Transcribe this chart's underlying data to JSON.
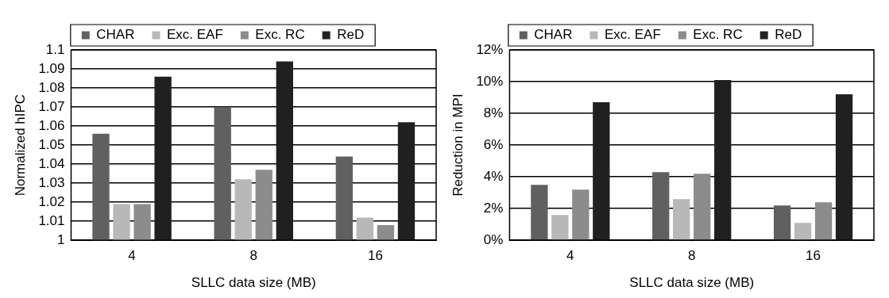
{
  "chart_data": [
    {
      "type": "bar",
      "categories": [
        "4",
        "8",
        "16"
      ],
      "xlabel": "SLLC data size (MB)",
      "ylabel": "Normalized hIPC",
      "ylim": [
        1,
        1.1
      ],
      "yticks": [
        1,
        1.01,
        1.02,
        1.03,
        1.04,
        1.05,
        1.06,
        1.07,
        1.08,
        1.09,
        1.1
      ],
      "grid": "y",
      "legend": "top",
      "series": [
        {
          "name": "CHAR",
          "color": "#606060",
          "values": [
            1.056,
            1.07,
            1.044
          ]
        },
        {
          "name": "Exc. EAF",
          "color": "#b8b8b8",
          "values": [
            1.019,
            1.032,
            1.012
          ]
        },
        {
          "name": "Exc. RC",
          "color": "#8c8c8c",
          "values": [
            1.019,
            1.037,
            1.008
          ]
        },
        {
          "name": "ReD",
          "color": "#202020",
          "values": [
            1.086,
            1.094,
            1.062
          ]
        }
      ]
    },
    {
      "type": "bar",
      "categories": [
        "4",
        "8",
        "16"
      ],
      "xlabel": "SLLC data size (MB)",
      "ylabel": "Reduction in MPI",
      "ylim": [
        0,
        12
      ],
      "yticks": [
        {
          "value": 0,
          "label": "0%"
        },
        {
          "value": 2,
          "label": "2%"
        },
        {
          "value": 4,
          "label": "4%"
        },
        {
          "value": 6,
          "label": "6%"
        },
        {
          "value": 8,
          "label": "8%"
        },
        {
          "value": 10,
          "label": "10%"
        },
        {
          "value": 12,
          "label": "12%"
        }
      ],
      "grid": "y",
      "legend": "top",
      "series": [
        {
          "name": "CHAR",
          "color": "#606060",
          "values": [
            3.5,
            4.3,
            2.2
          ]
        },
        {
          "name": "Exc. EAF",
          "color": "#b8b8b8",
          "values": [
            1.6,
            2.6,
            1.1
          ]
        },
        {
          "name": "Exc. RC",
          "color": "#8c8c8c",
          "values": [
            3.2,
            4.2,
            2.4
          ]
        },
        {
          "name": "ReD",
          "color": "#202020",
          "values": [
            8.7,
            10.1,
            9.2
          ]
        }
      ]
    }
  ]
}
